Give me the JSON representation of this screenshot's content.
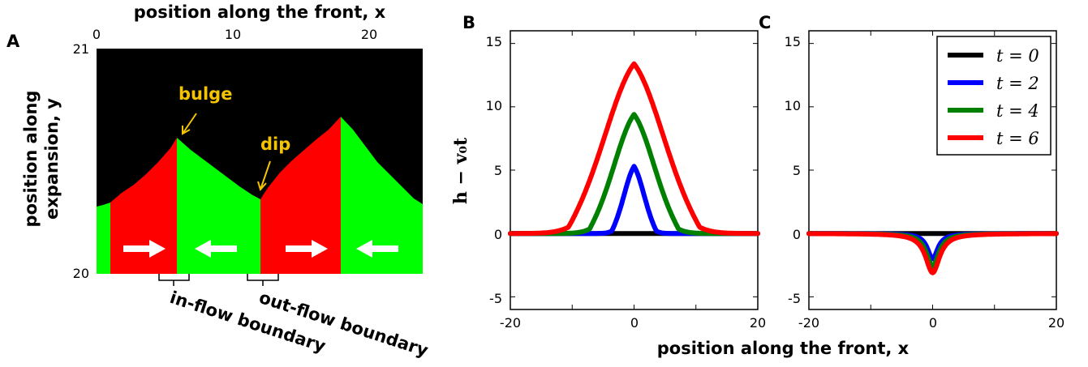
{
  "panel_a": {
    "letter": "A",
    "top_axis_label": "position along the front, x",
    "y_label_line1": "position along",
    "y_label_line2": "expansion, y",
    "x_ticks": [
      "0",
      "10",
      "20"
    ],
    "y_ticks": [
      "21",
      "20"
    ],
    "annotations": {
      "bulge": "bulge",
      "dip": "dip",
      "inflow": "in-flow boundary",
      "outflow": "out-flow boundary"
    },
    "colors": {
      "background": "#000000",
      "red_strain": "#ff0000",
      "green_strain": "#00ff00",
      "annotation": "#f5c400",
      "arrow": "#ffffff"
    }
  },
  "panel_b": {
    "letter": "B",
    "y_label": "h − v₀t"
  },
  "panel_c": {
    "letter": "C"
  },
  "shared": {
    "x_label": "position along the front, x",
    "x_ticks": [
      "-20",
      "0",
      "20"
    ],
    "y_ticks": [
      "15",
      "10",
      "5",
      "0",
      "-5"
    ]
  },
  "legend": {
    "entries": [
      {
        "label": "t = 0",
        "color": "#000000"
      },
      {
        "label": "t = 2",
        "color": "#0000ff"
      },
      {
        "label": "t = 4",
        "color": "#008000"
      },
      {
        "label": "t = 6",
        "color": "#ff0000"
      }
    ]
  },
  "chart_data": [
    {
      "type": "line",
      "panel": "B",
      "xlim": [
        -20,
        20
      ],
      "ylim": [
        -6,
        16
      ],
      "peak_x": 0,
      "series": [
        {
          "name": "t = 0",
          "color": "#000000",
          "peak": 0,
          "halfwidth": 1
        },
        {
          "name": "t = 2",
          "color": "#0000ff",
          "peak": 5.3,
          "halfwidth": 3.6
        },
        {
          "name": "t = 4",
          "color": "#008000",
          "peak": 9.4,
          "halfwidth": 7.2
        },
        {
          "name": "t = 6",
          "color": "#ff0000",
          "peak": 13.4,
          "halfwidth": 10.6
        }
      ]
    },
    {
      "type": "line",
      "panel": "C",
      "xlim": [
        -20,
        20
      ],
      "ylim": [
        -6,
        16
      ],
      "peak_x": 0,
      "series": [
        {
          "name": "t = 0",
          "color": "#000000",
          "peak": 0,
          "width": 1
        },
        {
          "name": "t = 2",
          "color": "#0000ff",
          "peak": -2.0,
          "width": 1.1
        },
        {
          "name": "t = 4",
          "color": "#008000",
          "peak": -2.6,
          "width": 1.3
        },
        {
          "name": "t = 6",
          "color": "#ff0000",
          "peak": -3.1,
          "width": 1.5
        }
      ]
    }
  ]
}
